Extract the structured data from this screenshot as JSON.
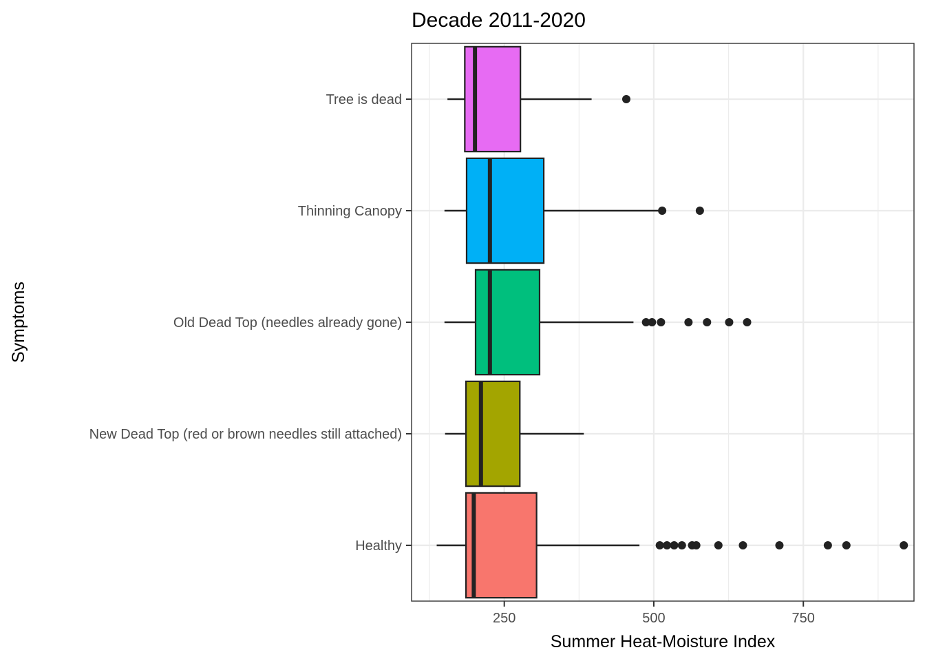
{
  "chart_data": {
    "type": "boxplot",
    "title": "Decade 2011-2020",
    "xlabel": "Summer Heat-Moisture Index",
    "ylabel": "Symptoms",
    "xlim": [
      95,
      935
    ],
    "x_ticks": [
      250,
      500,
      750
    ],
    "x_minor_ticks": [
      125,
      375,
      625,
      875
    ],
    "grid": true,
    "legend": "none",
    "categories": [
      "Healthy",
      "New Dead Top (red or brown needles still attached)",
      "Old Dead Top (needles already gone)",
      "Thinning Canopy",
      "Tree is dead"
    ],
    "series": [
      {
        "category": "Healthy",
        "color": "#F8766D",
        "min": 137,
        "q1": 186,
        "median": 199,
        "q3": 304,
        "max": 476,
        "outliers": [
          510,
          522,
          534,
          547,
          564,
          571,
          608,
          649,
          710,
          791,
          822,
          918
        ]
      },
      {
        "category": "New Dead Top (red or brown needles still attached)",
        "color": "#A3A500",
        "min": 151,
        "q1": 186,
        "median": 211,
        "q3": 276,
        "max": 383,
        "outliers": []
      },
      {
        "category": "Old Dead Top (needles already gone)",
        "color": "#00BF7D",
        "min": 150,
        "q1": 202,
        "median": 226,
        "q3": 309,
        "max": 466,
        "outliers": [
          487,
          497,
          512,
          558,
          589,
          626,
          656
        ]
      },
      {
        "category": "Thinning Canopy",
        "color": "#00B0F6",
        "min": 150,
        "q1": 187,
        "median": 226,
        "q3": 316,
        "max": 510,
        "outliers": [
          514,
          577
        ]
      },
      {
        "category": "Tree is dead",
        "color": "#E76BF3",
        "min": 155,
        "q1": 184,
        "median": 201,
        "q3": 277,
        "max": 396,
        "outliers": [
          454
        ]
      }
    ]
  }
}
